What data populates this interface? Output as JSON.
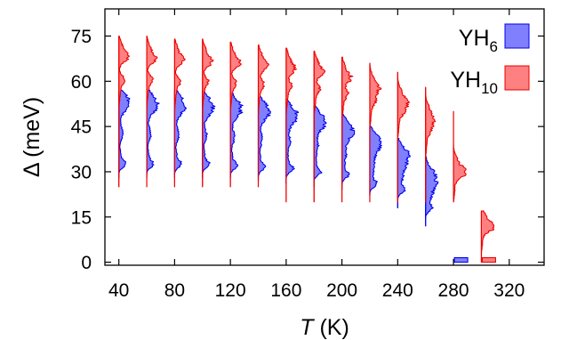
{
  "chart_data": {
    "type": "area",
    "xlabel_var": "T",
    "xlabel_unit": " (K)",
    "ylabel_var": "Δ",
    "ylabel_unit": " (meV)",
    "xlim": [
      30,
      345
    ],
    "ylim": [
      -1,
      84
    ],
    "x_ticks": [
      "40",
      "80",
      "120",
      "160",
      "200",
      "240",
      "280",
      "320"
    ],
    "y_ticks": [
      "0",
      "15",
      "30",
      "45",
      "60",
      "75"
    ],
    "grid": false,
    "legend_position": "top-right",
    "series": [
      {
        "name_base": "YH",
        "name_sub": "6",
        "fill": "#8080ff",
        "stroke": "#0000ee",
        "temperatures": [
          40,
          60,
          80,
          100,
          120,
          140,
          160,
          180,
          200,
          220,
          240,
          260,
          280
        ],
        "range_min": [
          28,
          28,
          28,
          28,
          28,
          27,
          26,
          25,
          24,
          22,
          18,
          12,
          0
        ],
        "range_max": [
          57,
          57,
          57,
          57,
          56,
          55,
          54,
          52,
          49,
          45,
          41,
          35,
          0
        ],
        "peak_low": [
          32.5,
          32.5,
          32.5,
          32.5,
          32.0,
          31.5,
          31.0,
          30.0,
          29.0,
          26.0,
          24.0,
          18.0,
          0
        ],
        "peak_high": [
          53.0,
          52.5,
          52.0,
          51.5,
          51.0,
          50.0,
          48.5,
          46.5,
          43.5,
          39.5,
          35.0,
          28.0,
          0
        ],
        "gap_stub": [
          null,
          null,
          null,
          null,
          null,
          null,
          null,
          null,
          null,
          null,
          null,
          null,
          1.5
        ]
      },
      {
        "name_base": "YH",
        "name_sub": "10",
        "fill": "#ff8080",
        "stroke": "#ee0000",
        "temperatures": [
          40,
          60,
          80,
          100,
          120,
          140,
          160,
          180,
          200,
          220,
          240,
          260,
          280,
          300
        ],
        "range_min": [
          25,
          25,
          25,
          25,
          25,
          25,
          20,
          20,
          20,
          20,
          20,
          20,
          20,
          0
        ],
        "range_max": [
          75,
          75,
          74,
          74,
          73,
          72,
          71,
          70,
          68,
          66,
          63,
          58,
          50,
          17
        ],
        "peak_low": [
          60.5,
          60.5,
          60.0,
          60.0,
          59.5,
          59.0,
          58.5,
          57.5,
          56.0,
          53.5,
          50.0,
          44.0,
          29.0,
          12.0
        ],
        "peak_high": [
          68.0,
          67.5,
          67.0,
          66.5,
          66.0,
          65.0,
          64.0,
          63.0,
          61.0,
          57.5,
          53.0,
          47.5,
          30.5,
          12.0
        ],
        "gap_stub": [
          null,
          null,
          null,
          null,
          null,
          null,
          null,
          null,
          null,
          null,
          null,
          null,
          null,
          1.5
        ]
      }
    ]
  }
}
